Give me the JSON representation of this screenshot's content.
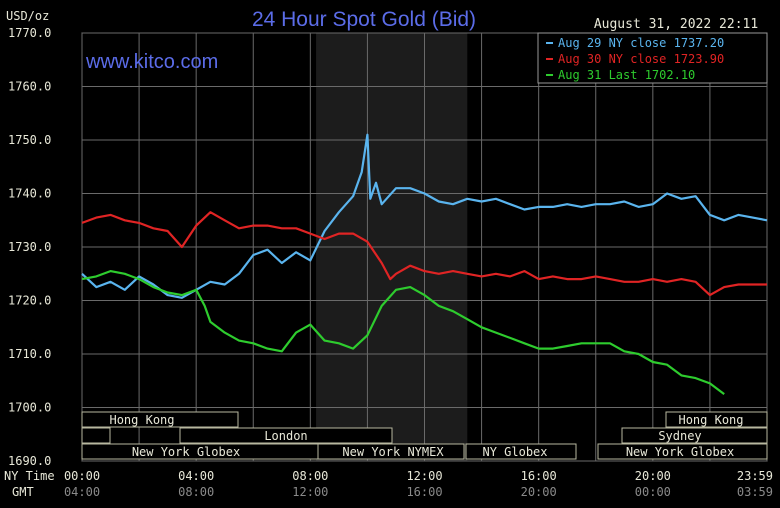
{
  "header": {
    "y_unit": "USD/oz",
    "title": "24 Hour Spot Gold (Bid)",
    "timestamp": "August 31, 2022 22:11",
    "watermark": "www.kitco.com"
  },
  "legend": [
    {
      "label": "Aug 29 NY close 1737.20",
      "color": "#5ab4ee"
    },
    {
      "label": "Aug 30 NY close 1723.90",
      "color": "#e02424"
    },
    {
      "label": "Aug 31 Last 1702.10",
      "color": "#2ecc2e"
    }
  ],
  "axis": {
    "row_label_ny": "NY Time",
    "row_label_gmt": "GMT",
    "ny_ticks": [
      "00:00",
      "04:00",
      "08:00",
      "12:00",
      "16:00",
      "20:00",
      "23:59"
    ],
    "gmt_ticks": [
      "04:00",
      "08:00",
      "12:00",
      "16:00",
      "20:00",
      "00:00",
      "03:59"
    ]
  },
  "sessions": {
    "hong_kong": "Hong Kong",
    "london": "London",
    "new_york_globex": "New York Globex",
    "new_york_nymex": "New York NYMEX",
    "ny_globex": "NY Globex",
    "sydney": "Sydney"
  },
  "chart_data": {
    "type": "line",
    "title": "24 Hour Spot Gold (Bid)",
    "ylabel": "USD/oz",
    "xlabel": "NY Time",
    "ylim": [
      1690,
      1770
    ],
    "yticks": [
      "1770.0",
      "1760.0",
      "1750.0",
      "1740.0",
      "1730.0",
      "1720.0",
      "1710.0",
      "1700.0",
      "1690.0"
    ],
    "xlim": [
      0,
      24
    ],
    "grid": true,
    "legend_position": "top-right",
    "nymex_shade_hours": [
      8.2,
      13.5
    ],
    "series": [
      {
        "name": "Aug 29 NY close 1737.20",
        "color": "#5ab4ee",
        "x": [
          0,
          0.5,
          1,
          1.5,
          2,
          2.5,
          3,
          3.5,
          4,
          4.5,
          5,
          5.5,
          6,
          6.5,
          7,
          7.5,
          8,
          8.5,
          9,
          9.5,
          9.8,
          10,
          10.1,
          10.3,
          10.5,
          11,
          11.5,
          12,
          12.5,
          13,
          13.5,
          14,
          14.5,
          15,
          15.5,
          16,
          16.5,
          17,
          17.5,
          18,
          18.5,
          19,
          19.5,
          20,
          20.5,
          21,
          21.5,
          22,
          22.5,
          23,
          23.5,
          24
        ],
        "y": [
          1725,
          1722.5,
          1723.5,
          1722,
          1724.5,
          1723,
          1721,
          1720.5,
          1722,
          1723.5,
          1723,
          1725,
          1728.5,
          1729.5,
          1727,
          1729,
          1727.5,
          1733,
          1736.5,
          1739.5,
          1744,
          1751,
          1739,
          1742,
          1738,
          1741,
          1741,
          1740,
          1738.5,
          1738,
          1739,
          1738.5,
          1739,
          1738,
          1737,
          1737.5,
          1737.5,
          1738,
          1737.5,
          1738,
          1738,
          1738.5,
          1737.5,
          1738,
          1740,
          1739,
          1739.5,
          1736,
          1735,
          1736,
          1735.5,
          1735
        ]
      },
      {
        "name": "Aug 30 NY close 1723.90",
        "color": "#e02424",
        "x": [
          0,
          0.5,
          1,
          1.5,
          2,
          2.5,
          3,
          3.5,
          4,
          4.5,
          5,
          5.5,
          6,
          6.5,
          7,
          7.5,
          8,
          8.5,
          9,
          9.5,
          10,
          10.5,
          10.8,
          11,
          11.5,
          12,
          12.5,
          13,
          13.5,
          14,
          14.5,
          15,
          15.5,
          16,
          16.5,
          17,
          17.5,
          18,
          18.5,
          19,
          19.5,
          20,
          20.5,
          21,
          21.5,
          22,
          22.5,
          23,
          23.5,
          24
        ],
        "y": [
          1734.5,
          1735.5,
          1736,
          1735,
          1734.5,
          1733.5,
          1733,
          1730,
          1734,
          1736.5,
          1735,
          1733.5,
          1734,
          1734,
          1733.5,
          1733.5,
          1732.5,
          1731.5,
          1732.5,
          1732.5,
          1731,
          1727,
          1724,
          1725,
          1726.5,
          1725.5,
          1725,
          1725.5,
          1725,
          1724.5,
          1725,
          1724.5,
          1725.5,
          1724,
          1724.5,
          1724,
          1724,
          1724.5,
          1724,
          1723.5,
          1723.5,
          1724,
          1723.5,
          1724,
          1723.5,
          1721,
          1722.5,
          1723,
          1723,
          1723
        ]
      },
      {
        "name": "Aug 31 Last 1702.10",
        "color": "#2ecc2e",
        "x": [
          0,
          0.5,
          1,
          1.5,
          2,
          2.5,
          3,
          3.5,
          4,
          4.3,
          4.5,
          5,
          5.5,
          6,
          6.5,
          7,
          7.5,
          8,
          8.5,
          9,
          9.5,
          10,
          10.5,
          11,
          11.5,
          12,
          12.5,
          13,
          13.5,
          14,
          14.5,
          15,
          15.5,
          16,
          16.5,
          17,
          17.5,
          18,
          18.5,
          19,
          19.5,
          20,
          20.5,
          21,
          21.5,
          22,
          22.5
        ],
        "y": [
          1724,
          1724.5,
          1725.5,
          1725,
          1724,
          1722.5,
          1721.5,
          1721,
          1722,
          1719,
          1716,
          1714,
          1712.5,
          1712,
          1711,
          1710.5,
          1714,
          1715.5,
          1712.5,
          1712,
          1711,
          1713.5,
          1719,
          1722,
          1722.5,
          1721,
          1719,
          1718,
          1716.5,
          1715,
          1714,
          1713,
          1712,
          1711,
          1711,
          1711.5,
          1712,
          1712,
          1712,
          1710.5,
          1710,
          1708.5,
          1708,
          1706,
          1705.5,
          1704.5,
          1702.5
        ]
      }
    ]
  }
}
